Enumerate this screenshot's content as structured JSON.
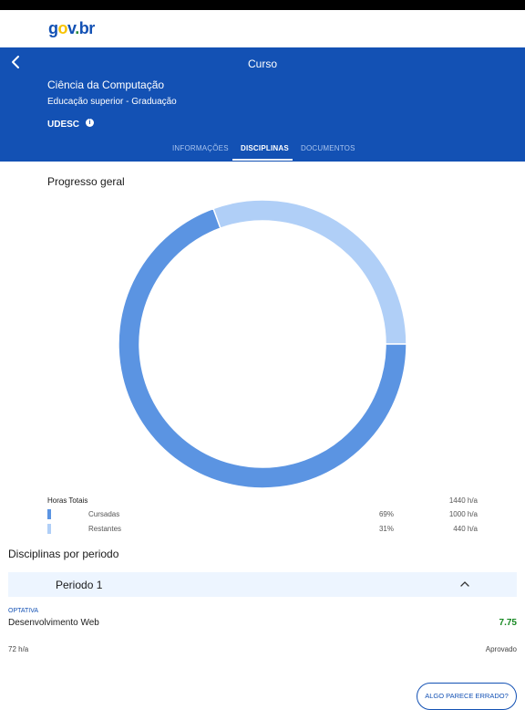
{
  "brand": {
    "logo": [
      "g",
      "o",
      "v",
      ".",
      "br"
    ]
  },
  "header": {
    "title": "Curso",
    "course_name": "Ciência da Computação",
    "course_level": "Educação superior - Graduação",
    "institution": "UDESC"
  },
  "tabs": [
    {
      "label": "INFORMAÇÕES",
      "active": false
    },
    {
      "label": "DISCIPLINAS",
      "active": true
    },
    {
      "label": "DOCUMENTOS",
      "active": false
    }
  ],
  "progress": {
    "title": "Progresso geral",
    "total_label": "Horas Totais",
    "total_value": "1440 h/a",
    "rows": [
      {
        "label": "Cursadas",
        "percent": "69%",
        "value": "1000 h/a",
        "color": "#5b94e2"
      },
      {
        "label": "Restantes",
        "percent": "31%",
        "value": "440 h/a",
        "color": "#b0cff7"
      }
    ]
  },
  "chart_data": {
    "type": "pie",
    "categories": [
      "Cursadas",
      "Restantes"
    ],
    "values": [
      1000,
      440
    ],
    "colors": [
      "#5b94e2",
      "#b0cff7"
    ],
    "title": ""
  },
  "periods": {
    "title": "Disciplinas por periodo",
    "items": [
      {
        "label": "Periodo 1",
        "expanded": true,
        "disciplines": [
          {
            "tag": "OPTATIVA",
            "name": "Desenvolvimento Web",
            "grade": "7.75",
            "hours": "72 h/a",
            "status": "Aprovado"
          }
        ]
      }
    ]
  },
  "footer": {
    "report_label": "ALGO PARECE ERRADO?"
  },
  "icons": {
    "back": "back-arrow-icon",
    "info": "info-icon",
    "chevron": "chevron-up-icon"
  },
  "colors": {
    "primary": "#1351b4",
    "success": "#168821",
    "period_bg": "#edf5ff"
  }
}
